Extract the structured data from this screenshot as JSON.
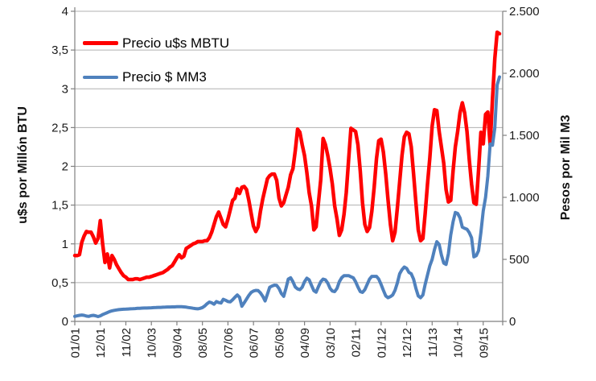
{
  "chart_data": {
    "type": "line",
    "title": "",
    "grid": true,
    "legend_position": "top-left-inside",
    "x_axis": {
      "start_label": "01/01",
      "months_total": 184,
      "tick_months": [
        0,
        11,
        22,
        33,
        44,
        55,
        66,
        77,
        88,
        99,
        110,
        121,
        132,
        143,
        154,
        165,
        176
      ],
      "tick_labels": [
        "01/01",
        "12/01",
        "11/02",
        "10/03",
        "09/04",
        "08/05",
        "07/06",
        "06/07",
        "05/08",
        "04/09",
        "03/10",
        "02/11",
        "01/12",
        "12/12",
        "11/13",
        "10/14",
        "09/15"
      ]
    },
    "axes": {
      "left": {
        "title": "u$s por Millón BTU",
        "range": [
          0,
          4
        ],
        "tick_values": [
          0,
          0.5,
          1,
          1.5,
          2,
          2.5,
          3,
          3.5,
          4
        ],
        "tick_labels": [
          "0",
          "0,5",
          "1",
          "1,5",
          "2",
          "2,5",
          "3",
          "3,5",
          "4"
        ]
      },
      "right": {
        "title": "Pesos por Mil M3",
        "range": [
          0,
          2500
        ],
        "tick_values": [
          0,
          500,
          1000,
          1500,
          2000,
          2500
        ],
        "tick_labels": [
          "0",
          "500",
          "1.000",
          "1.500",
          "2.000",
          "2.500"
        ]
      }
    },
    "series": [
      {
        "id": "precio-usd-mbtu",
        "name": "Precio u$s MBTU",
        "color": "#ff0000",
        "axis": "left",
        "width": 4.5,
        "values": [
          0.85,
          0.85,
          0.86,
          1.02,
          1.1,
          1.16,
          1.15,
          1.15,
          1.09,
          1.01,
          1.07,
          1.3,
          1.0,
          0.76,
          0.87,
          0.69,
          0.85,
          0.8,
          0.73,
          0.68,
          0.63,
          0.59,
          0.57,
          0.54,
          0.54,
          0.54,
          0.55,
          0.55,
          0.54,
          0.55,
          0.56,
          0.57,
          0.57,
          0.58,
          0.59,
          0.6,
          0.61,
          0.62,
          0.63,
          0.65,
          0.67,
          0.7,
          0.72,
          0.77,
          0.82,
          0.86,
          0.82,
          0.84,
          0.94,
          0.96,
          0.98,
          1.0,
          1.01,
          1.03,
          1.03,
          1.03,
          1.04,
          1.04,
          1.08,
          1.15,
          1.25,
          1.35,
          1.41,
          1.33,
          1.25,
          1.22,
          1.32,
          1.44,
          1.56,
          1.59,
          1.71,
          1.65,
          1.73,
          1.74,
          1.7,
          1.56,
          1.39,
          1.23,
          1.16,
          1.22,
          1.42,
          1.58,
          1.71,
          1.84,
          1.88,
          1.9,
          1.9,
          1.82,
          1.59,
          1.49,
          1.53,
          1.63,
          1.73,
          1.89,
          1.97,
          2.2,
          2.48,
          2.44,
          2.28,
          2.14,
          1.92,
          1.66,
          1.49,
          1.18,
          1.22,
          1.53,
          1.83,
          2.36,
          2.28,
          2.14,
          1.97,
          1.77,
          1.49,
          1.32,
          1.11,
          1.18,
          1.38,
          1.66,
          2.08,
          2.49,
          2.47,
          2.45,
          2.28,
          1.94,
          1.53,
          1.25,
          1.16,
          1.21,
          1.42,
          1.73,
          2.1,
          2.33,
          2.35,
          2.18,
          1.9,
          1.56,
          1.25,
          1.04,
          1.15,
          1.46,
          1.8,
          2.14,
          2.38,
          2.44,
          2.42,
          2.25,
          1.9,
          1.53,
          1.18,
          1.04,
          1.07,
          1.39,
          1.77,
          2.11,
          2.52,
          2.73,
          2.72,
          2.45,
          2.25,
          2.04,
          1.7,
          1.54,
          1.56,
          1.94,
          2.25,
          2.45,
          2.69,
          2.82,
          2.69,
          2.45,
          2.08,
          1.77,
          1.53,
          1.51,
          1.95,
          2.44,
          2.29,
          2.67,
          2.7,
          2.27,
          2.87,
          3.39,
          3.73,
          3.71
        ]
      },
      {
        "id": "precio-pesos-mm3",
        "name": "Precio $ MM3",
        "color": "#4f81bd",
        "axis": "right",
        "width": 4,
        "values": [
          40,
          45,
          49,
          51,
          49,
          43,
          40,
          46,
          49,
          45,
          39,
          45,
          55,
          63,
          71,
          79,
          85,
          89,
          92,
          95,
          97,
          98,
          99,
          100,
          101,
          102,
          103,
          105,
          106,
          107,
          108,
          108,
          109,
          110,
          111,
          112,
          113,
          113,
          114,
          115,
          116,
          116,
          117,
          117,
          118,
          118,
          118,
          117,
          115,
          112,
          109,
          106,
          103,
          101,
          105,
          112,
          125,
          142,
          156,
          150,
          138,
          160,
          152,
          148,
          178,
          170,
          160,
          158,
          175,
          195,
          213,
          195,
          122,
          150,
          180,
          210,
          234,
          245,
          250,
          248,
          230,
          202,
          165,
          220,
          275,
          285,
          292,
          290,
          265,
          225,
          202,
          266,
          341,
          352,
          320,
          277,
          262,
          256,
          275,
          320,
          348,
          335,
          290,
          248,
          236,
          280,
          320,
          341,
          335,
          309,
          266,
          245,
          240,
          266,
          320,
          352,
          369,
          369,
          369,
          360,
          352,
          320,
          277,
          240,
          234,
          256,
          298,
          341,
          363,
          363,
          363,
          341,
          298,
          250,
          205,
          191,
          200,
          213,
          250,
          309,
          384,
          417,
          438,
          427,
          395,
          384,
          341,
          266,
          205,
          191,
          213,
          298,
          374,
          449,
          500,
          580,
          642,
          621,
          535,
          470,
          459,
          546,
          696,
          803,
          878,
          870,
          835,
          760,
          750,
          743,
          715,
          674,
          520,
          530,
          570,
          717,
          890,
          1000,
          1170,
          1430,
          1420,
          1560,
          1906,
          1970
        ]
      }
    ],
    "colors": {
      "gridline": "#b0b0b0",
      "axis_line": "#808080",
      "text": "#1a1a1a"
    }
  }
}
